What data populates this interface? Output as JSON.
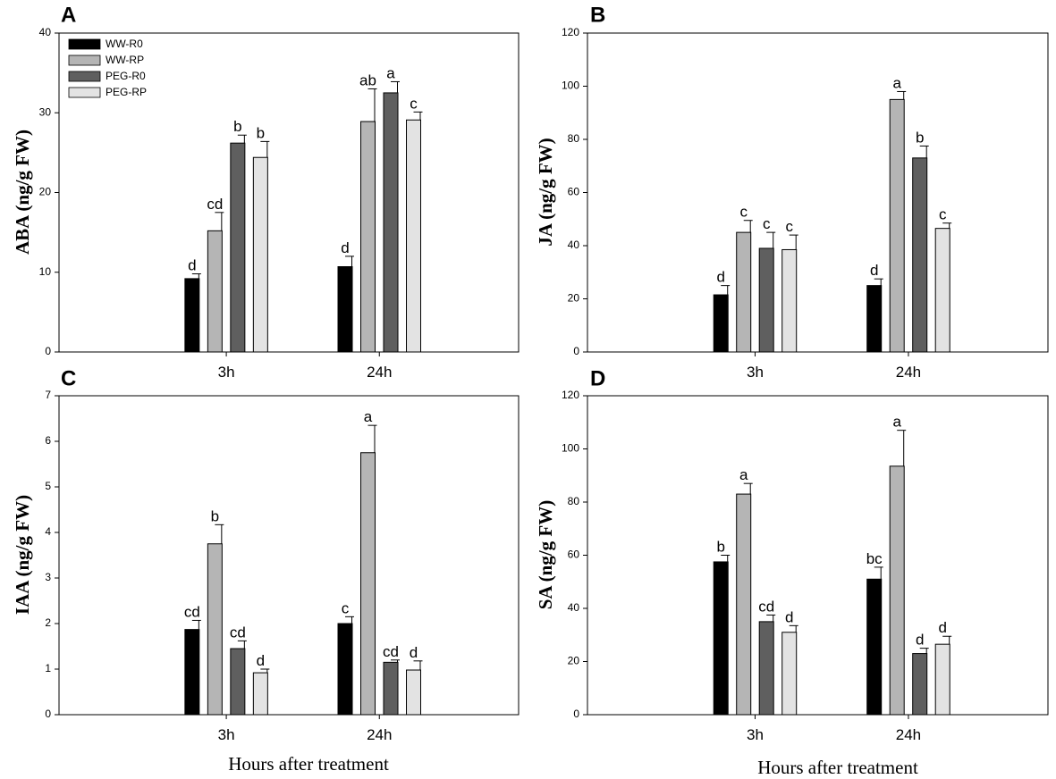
{
  "colors": {
    "WW-R0": "#000000",
    "WW-RP": "#b5b5b5",
    "PEG-R0": "#5f5f5f",
    "PEG-RP": "#e3e3e3"
  },
  "chart_data": [
    {
      "panel": "A",
      "type": "bar",
      "ylabel": "ABA (ng/g FW)",
      "xlabel": "",
      "categories": [
        "3h",
        "24h"
      ],
      "ylim": [
        0,
        40
      ],
      "yticks": [
        0,
        10,
        20,
        30,
        40
      ],
      "legend": "top-left",
      "series": [
        {
          "name": "WW-R0",
          "values": [
            9.2,
            10.7
          ],
          "errors": [
            0.6,
            1.3
          ],
          "letters": [
            "d",
            "d"
          ]
        },
        {
          "name": "WW-RP",
          "values": [
            15.2,
            28.9
          ],
          "errors": [
            2.3,
            4.1
          ],
          "letters": [
            "cd",
            "ab"
          ]
        },
        {
          "name": "PEG-R0",
          "values": [
            26.2,
            32.5
          ],
          "errors": [
            1.0,
            1.4
          ],
          "letters": [
            "b",
            "a"
          ]
        },
        {
          "name": "PEG-RP",
          "values": [
            24.4,
            29.1
          ],
          "errors": [
            2.0,
            1.0
          ],
          "letters": [
            "b",
            "c"
          ]
        }
      ]
    },
    {
      "panel": "B",
      "type": "bar",
      "ylabel": "JA (ng/g FW)",
      "xlabel": "",
      "categories": [
        "3h",
        "24h"
      ],
      "ylim": [
        0,
        120
      ],
      "yticks": [
        0,
        20,
        40,
        60,
        80,
        100,
        120
      ],
      "series": [
        {
          "name": "WW-R0",
          "values": [
            21.5,
            25.0
          ],
          "errors": [
            3.5,
            2.5
          ],
          "letters": [
            "d",
            "d"
          ]
        },
        {
          "name": "WW-RP",
          "values": [
            45.0,
            95.0
          ],
          "errors": [
            4.5,
            3.0
          ],
          "letters": [
            "c",
            "a"
          ]
        },
        {
          "name": "PEG-R0",
          "values": [
            39.0,
            73.0
          ],
          "errors": [
            6.0,
            4.5
          ],
          "letters": [
            "c",
            "b"
          ]
        },
        {
          "name": "PEG-RP",
          "values": [
            38.5,
            46.5
          ],
          "errors": [
            5.5,
            2.0
          ],
          "letters": [
            "c",
            "c"
          ]
        }
      ]
    },
    {
      "panel": "C",
      "type": "bar",
      "ylabel": "IAA  (ng/g FW)",
      "xlabel": "Hours after treatment",
      "categories": [
        "3h",
        "24h"
      ],
      "ylim": [
        0,
        7
      ],
      "yticks": [
        0,
        1,
        2,
        3,
        4,
        5,
        6,
        7
      ],
      "series": [
        {
          "name": "WW-R0",
          "values": [
            1.87,
            2.0
          ],
          "errors": [
            0.2,
            0.15
          ],
          "letters": [
            "cd",
            "c"
          ]
        },
        {
          "name": "WW-RP",
          "values": [
            3.75,
            5.75
          ],
          "errors": [
            0.42,
            0.6
          ],
          "letters": [
            "b",
            "a"
          ]
        },
        {
          "name": "PEG-R0",
          "values": [
            1.45,
            1.15
          ],
          "errors": [
            0.17,
            0.05
          ],
          "letters": [
            "cd",
            "cd"
          ]
        },
        {
          "name": "PEG-RP",
          "values": [
            0.92,
            0.98
          ],
          "errors": [
            0.08,
            0.2
          ],
          "letters": [
            "d",
            "d"
          ]
        }
      ]
    },
    {
      "panel": "D",
      "type": "bar",
      "ylabel": "SA (ng/g FW)",
      "xlabel": "Hours after treatment",
      "categories": [
        "3h",
        "24h"
      ],
      "ylim": [
        0,
        120
      ],
      "yticks": [
        0,
        20,
        40,
        60,
        80,
        100,
        120
      ],
      "series": [
        {
          "name": "WW-R0",
          "values": [
            57.5,
            51.0
          ],
          "errors": [
            2.5,
            4.5
          ],
          "letters": [
            "b",
            "bc"
          ]
        },
        {
          "name": "WW-RP",
          "values": [
            83.0,
            93.5
          ],
          "errors": [
            4.0,
            13.5
          ],
          "letters": [
            "a",
            "a"
          ]
        },
        {
          "name": "PEG-R0",
          "values": [
            35.0,
            23.0
          ],
          "errors": [
            2.5,
            2.0
          ],
          "letters": [
            "cd",
            "d"
          ]
        },
        {
          "name": "PEG-RP",
          "values": [
            31.0,
            26.5
          ],
          "errors": [
            2.5,
            3.0
          ],
          "letters": [
            "d",
            "d"
          ]
        }
      ]
    }
  ]
}
